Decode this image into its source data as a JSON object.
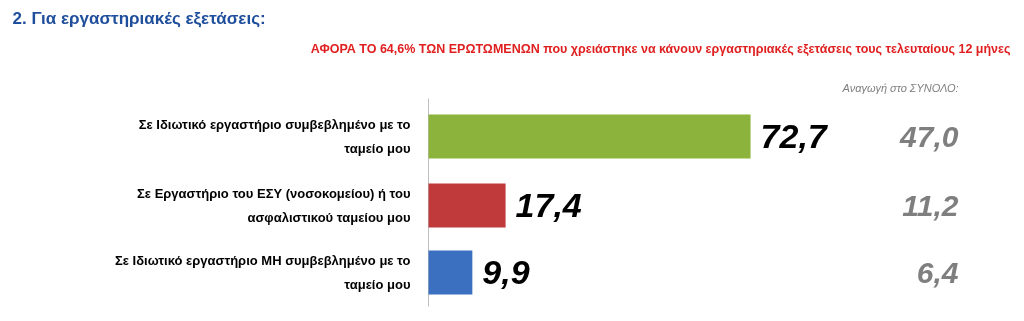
{
  "chart_data": {
    "type": "bar",
    "orientation": "horizontal",
    "title": "2. Για εργαστηριακές εξετάσεις:",
    "subtitle": "ΑΦΟΡΑ ΤΟ 64,6% ΤΩΝ ΕΡΩΤΩΜΕΝΩΝ που χρειάστηκε να κάνουν εργαστηριακές εξετάσεις τους τελευταίους 12 μήνες",
    "categories": [
      "Σε Ιδιωτικό εργαστήριο συμβεβλημένο με το ταμείο μου",
      "Σε Εργαστήριο του ΕΣΥ (νοσοκομείου) ή του ασφαλιστικού ταμείου μου",
      "Σε Ιδιωτικό εργαστήριο ΜΗ συμβεβλημένο με το ταμείο μου"
    ],
    "values": [
      72.7,
      17.4,
      9.9
    ],
    "colors": [
      "#8cb43c",
      "#c0393b",
      "#3b70c0"
    ],
    "value_labels": [
      "72,7",
      "17,4",
      "9,9"
    ],
    "annotations": [
      "Αναγωγή στο ΣΥΝΟΛΟ:",
      "47,0",
      "11,2",
      "6,4"
    ]
  }
}
